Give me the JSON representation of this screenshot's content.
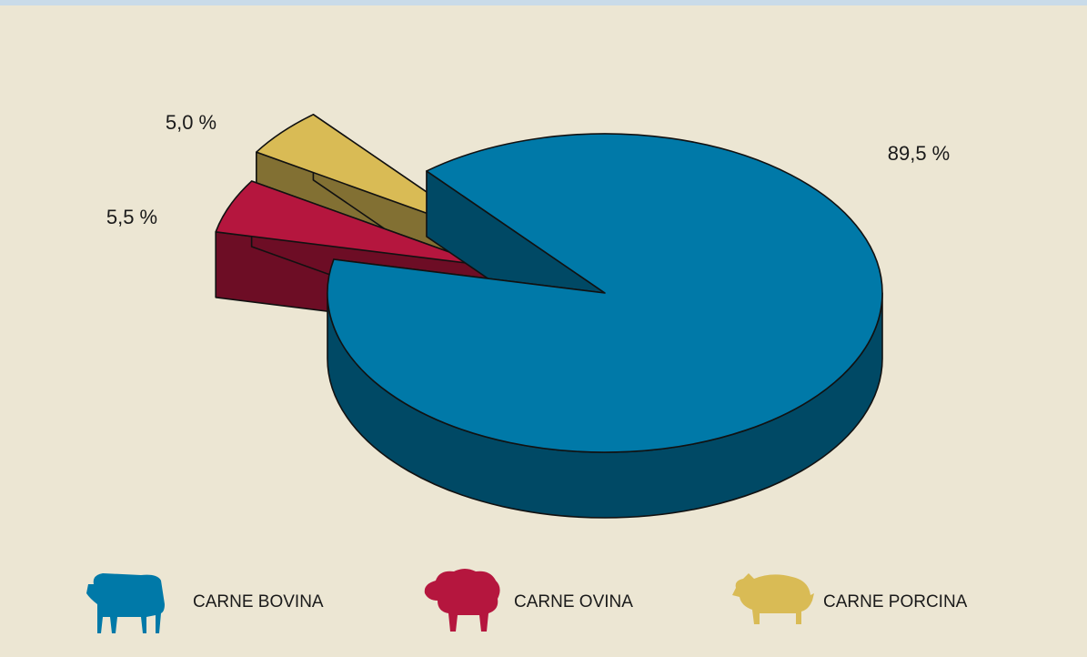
{
  "chart_data": {
    "type": "pie3d",
    "categories": [
      "CARNE BOVINA",
      "CARNE OVINA",
      "CARNE PORCINA"
    ],
    "values": [
      89.5,
      5.5,
      5.0
    ],
    "value_labels": [
      "89,5 %",
      "5,5 %",
      "5,0 %"
    ],
    "colors": [
      "#0079a8",
      "#b5163e",
      "#d9bb55"
    ]
  }
}
